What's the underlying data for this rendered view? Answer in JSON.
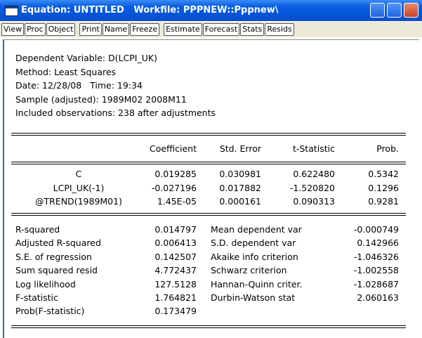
{
  "window": {
    "title": "Equation: UNTITLED   Workfile: PPPNEW::Pppnew\\"
  },
  "toolbar": [
    [
      "View",
      "Proc",
      "Object"
    ],
    [
      "Print",
      "Name",
      "Freeze"
    ],
    [
      "Estimate",
      "Forecast",
      "Stats",
      "Resids"
    ]
  ],
  "header": [
    "Dependent Variable: D(LCPI_UK)",
    "Method: Least Squares",
    "Date: 12/28/08   Time: 19:34",
    "Sample (adjusted): 1989M02 2008M11",
    "Included observations: 238 after adjustments"
  ],
  "table": {
    "columns": [
      "Coefficient",
      "Std. Error",
      "t-Statistic",
      "Prob."
    ],
    "rows": [
      [
        "C",
        "0.019285",
        "0.030981",
        "0.622480",
        "0.5342"
      ],
      [
        "LCPI_UK(-1)",
        "-0.027196",
        "0.017882",
        "-1.520820",
        "0.1296"
      ],
      [
        "@TREND(1989M01)",
        "1.45E-05",
        "0.000161",
        "0.090313",
        "0.9281"
      ]
    ]
  },
  "statistics": {
    "rows": [
      [
        "R-squared",
        "0.014797",
        "Mean dependent var",
        "-0.000749"
      ],
      [
        "Adjusted R-squared",
        "0.006413",
        "S.D. dependent var",
        "0.142966"
      ],
      [
        "S.E. of regression",
        "0.142507",
        "Akaike info criterion",
        "-1.046326"
      ],
      [
        "Sum squared resid",
        "4.772437",
        "Schwarz criterion",
        "-1.002558"
      ],
      [
        "Log likelihood",
        "127.5128",
        "Hannan-Quinn criter.",
        "-1.028687"
      ],
      [
        "F-statistic",
        "1.764821",
        "Durbin-Watson stat",
        "2.060163"
      ],
      [
        "Prob(F-statistic)",
        "0.173479"
      ]
    ]
  }
}
